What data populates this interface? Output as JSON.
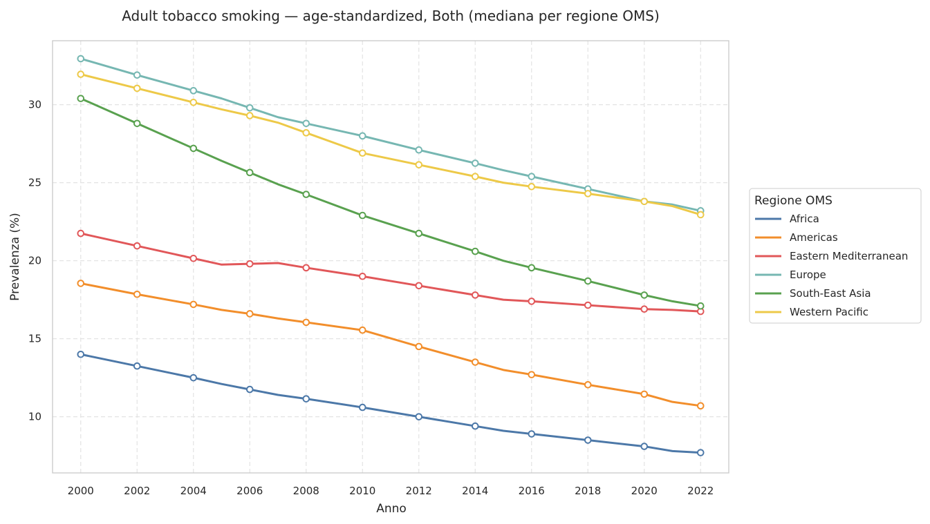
{
  "chart_data": {
    "type": "line",
    "title": "Adult tobacco smoking — age-standardized, Both (mediana per regione OMS)",
    "xlabel": "Anno",
    "ylabel": "Prevalenza (%)",
    "xlim": [
      1999,
      2023
    ],
    "ylim": [
      6.4,
      34.1
    ],
    "x_ticks": [
      2000,
      2002,
      2004,
      2006,
      2008,
      2010,
      2012,
      2014,
      2016,
      2018,
      2020,
      2022
    ],
    "y_ticks": [
      10,
      15,
      20,
      25,
      30
    ],
    "grid": true,
    "legend": {
      "title": "Regione OMS",
      "placement": "right"
    },
    "x": [
      2000,
      2002,
      2004,
      2005,
      2006,
      2007,
      2008,
      2010,
      2012,
      2014,
      2015,
      2016,
      2018,
      2020,
      2021,
      2022
    ],
    "markers_at": [
      2000,
      2002,
      2004,
      2006,
      2008,
      2010,
      2012,
      2014,
      2016,
      2018,
      2020,
      2022
    ],
    "series": [
      {
        "name": "Africa",
        "color": "#4c78a8",
        "values": [
          14.0,
          13.25,
          12.5,
          12.1,
          11.75,
          11.4,
          11.15,
          10.6,
          10.0,
          9.4,
          9.1,
          8.9,
          8.5,
          8.1,
          7.8,
          7.7
        ]
      },
      {
        "name": "Americas",
        "color": "#f28e2b",
        "values": [
          18.55,
          17.85,
          17.2,
          16.85,
          16.6,
          16.3,
          16.05,
          15.55,
          14.5,
          13.5,
          13.0,
          12.7,
          12.05,
          11.45,
          10.95,
          10.7
        ]
      },
      {
        "name": "Eastern Mediterranean",
        "color": "#e15759",
        "values": [
          21.75,
          20.95,
          20.15,
          19.75,
          19.8,
          19.85,
          19.55,
          19.0,
          18.4,
          17.8,
          17.5,
          17.4,
          17.15,
          16.9,
          16.85,
          16.75
        ]
      },
      {
        "name": "Europe",
        "color": "#76b7b2",
        "values": [
          32.95,
          31.9,
          30.9,
          30.4,
          29.8,
          29.2,
          28.8,
          28.0,
          27.1,
          26.25,
          25.8,
          25.4,
          24.6,
          23.8,
          23.6,
          23.2
        ]
      },
      {
        "name": "South-East Asia",
        "color": "#59a14f",
        "values": [
          30.4,
          28.8,
          27.2,
          26.4,
          25.65,
          24.9,
          24.25,
          22.9,
          21.75,
          20.6,
          20.0,
          19.55,
          18.7,
          17.8,
          17.4,
          17.1
        ]
      },
      {
        "name": "Western Pacific",
        "color": "#edc948",
        "values": [
          31.95,
          31.05,
          30.15,
          29.7,
          29.3,
          28.85,
          28.2,
          26.9,
          26.15,
          25.4,
          25.0,
          24.75,
          24.3,
          23.8,
          23.5,
          22.95
        ]
      }
    ]
  }
}
